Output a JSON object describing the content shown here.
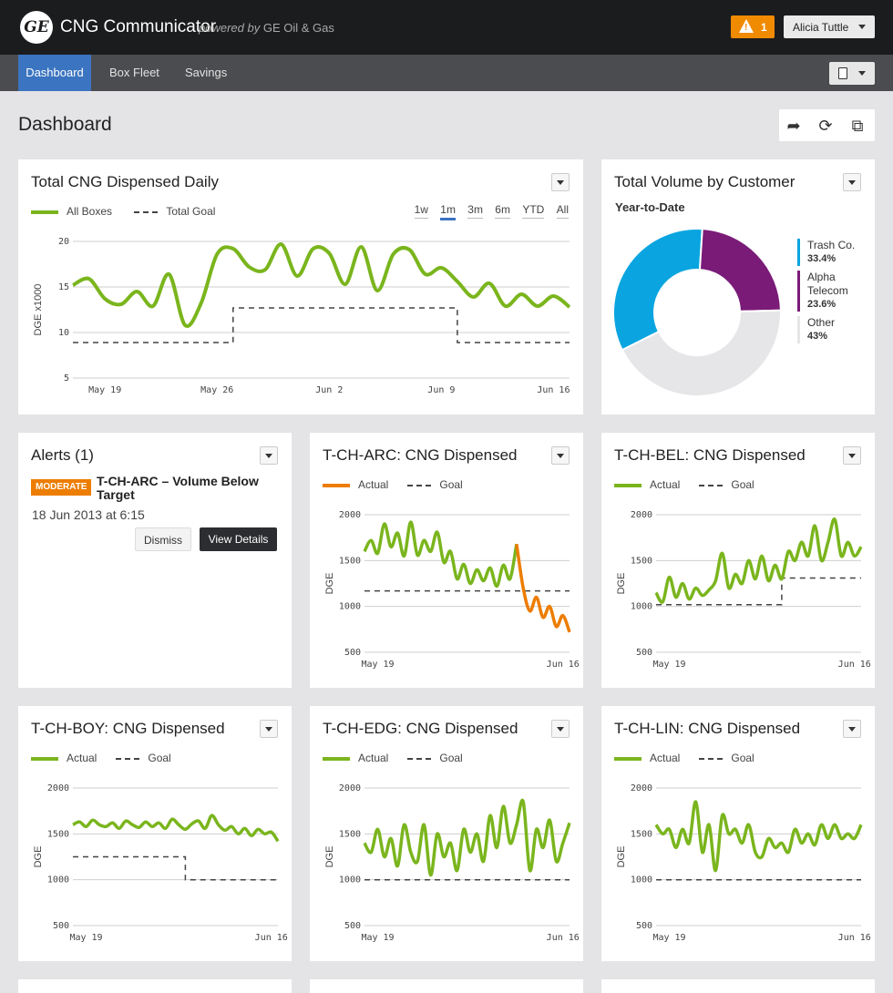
{
  "app": {
    "logo_text": "GE",
    "title": "CNG Communicator",
    "powered_prefix": "powered by",
    "powered_brand": "GE Oil & Gas"
  },
  "header": {
    "alert_count": "1",
    "user_name": "Alicia Tuttle"
  },
  "nav": {
    "items": [
      {
        "label": "Dashboard",
        "active": true
      },
      {
        "label": "Box Fleet"
      },
      {
        "label": "Savings"
      }
    ]
  },
  "page": {
    "title": "Dashboard"
  },
  "colors": {
    "green": "#7ab51d",
    "orange": "#ed7d00",
    "blue": "#0aa5e0",
    "purple": "#7a1b78",
    "gray": "#e6e6e9",
    "nav_active": "#3b74c0"
  },
  "main_chart": {
    "title": "Total CNG Dispensed Daily",
    "legend_actual": "All Boxes",
    "legend_goal": "Total Goal",
    "ranges": [
      "1w",
      "1m",
      "3m",
      "6m",
      "YTD",
      "All"
    ],
    "active_range": "1m"
  },
  "pie": {
    "title": "Total Volume by Customer",
    "subtitle": "Year-to-Date",
    "slices": [
      {
        "name": "Trash Co.",
        "pct": "33.4%",
        "value": 33.4,
        "color": "#0aa5e0"
      },
      {
        "name": "Alpha Telecom",
        "pct": "23.6%",
        "value": 23.6,
        "color": "#7a1b78"
      },
      {
        "name": "Other",
        "pct": "43%",
        "value": 43.0,
        "color": "#e6e6e9"
      }
    ]
  },
  "alerts": {
    "title": "Alerts (1)",
    "severity": "MODERATE",
    "message": "T-CH-ARC – Volume Below Target",
    "date": "18 Jun 2013 at 6:15",
    "dismiss_label": "Dismiss",
    "details_label": "View Details"
  },
  "box_panels": [
    {
      "title": "T-CH-ARC: CNG Dispensed"
    },
    {
      "title": "T-CH-BEL: CNG Dispensed"
    },
    {
      "title": "T-CH-BOY: CNG Dispensed"
    },
    {
      "title": "T-CH-EDG: CNG Dispensed"
    },
    {
      "title": "T-CH-LIN: CNG Dispensed"
    }
  ],
  "legend": {
    "actual": "Actual",
    "goal": "Goal"
  },
  "chart_data": [
    {
      "type": "line",
      "title": "Total CNG Dispensed Daily",
      "xlabel": "",
      "ylabel": "DGE x1000",
      "ylim": [
        5,
        20
      ],
      "yticks": [
        "20",
        "15",
        "10",
        "5"
      ],
      "ytick_values": [
        20,
        15,
        10,
        5
      ],
      "xlim": [
        0,
        31
      ],
      "xticks": [
        "May 19",
        "May 26",
        "Jun 2",
        "Jun 9",
        "Jun 16"
      ],
      "xtick_values": [
        2,
        9,
        16,
        23,
        30
      ],
      "series": [
        {
          "name": "All Boxes",
          "values": [
            15.2,
            15.9,
            13.7,
            13.1,
            14.5,
            12.9,
            16.4,
            10.8,
            13.2,
            18.6,
            19.2,
            17.2,
            16.9,
            19.7,
            16.2,
            19.2,
            18.7,
            15.3,
            19.4,
            14.6,
            18.6,
            19.1,
            16.4,
            17.1,
            15.6,
            13.9,
            15.4,
            12.9,
            14.2,
            12.9,
            14.0,
            12.8
          ]
        },
        {
          "name": "Total Goal",
          "dashed": true,
          "steps": [
            [
              0,
              8.9
            ],
            [
              10,
              8.9
            ],
            [
              10,
              12.7
            ],
            [
              24,
              12.7
            ],
            [
              24,
              8.9
            ],
            [
              31,
              8.9
            ]
          ]
        }
      ]
    },
    {
      "type": "pie",
      "title": "Total Volume by Customer",
      "categories": [
        "Trash Co.",
        "Alpha Telecom",
        "Other"
      ],
      "values": [
        33.4,
        23.6,
        43.0
      ]
    },
    {
      "type": "line",
      "title": "T-CH-ARC: CNG Dispensed",
      "ylabel": "DGE",
      "ylim": [
        500,
        2000
      ],
      "yticks": [
        "2000",
        "1500",
        "1000",
        "500"
      ],
      "ytick_values": [
        2000,
        1500,
        1000,
        500
      ],
      "xlim": [
        0,
        31
      ],
      "xticks": [
        "May 19",
        "Jun 16"
      ],
      "xtick_values": [
        2,
        30
      ],
      "series": [
        {
          "name": "Actual",
          "values": [
            1600,
            1720,
            1580,
            1900,
            1650,
            1800,
            1550,
            1920,
            1560,
            1720,
            1600,
            1810,
            1480,
            1600,
            1300,
            1460,
            1250,
            1400,
            1280,
            1420,
            1220,
            1450,
            1300,
            1680,
            1200,
            950,
            1100,
            880,
            1000,
            780,
            900,
            720
          ]
        },
        {
          "name": "Goal",
          "dashed": true,
          "steps": [
            [
              0,
              1170
            ],
            [
              31,
              1170
            ]
          ]
        }
      ]
    },
    {
      "type": "line",
      "title": "T-CH-BEL: CNG Dispensed",
      "ylabel": "DGE",
      "ylim": [
        500,
        2000
      ],
      "yticks": [
        "2000",
        "1500",
        "1000",
        "500"
      ],
      "ytick_values": [
        2000,
        1500,
        1000,
        500
      ],
      "xlim": [
        0,
        31
      ],
      "xticks": [
        "May 19",
        "Jun 16"
      ],
      "xtick_values": [
        2,
        30
      ],
      "series": [
        {
          "name": "Actual",
          "values": [
            1150,
            1050,
            1320,
            1100,
            1250,
            1080,
            1200,
            1120,
            1180,
            1280,
            1580,
            1200,
            1350,
            1250,
            1500,
            1300,
            1550,
            1280,
            1450,
            1300,
            1600,
            1500,
            1700,
            1550,
            1880,
            1500,
            1700,
            1950,
            1550,
            1700,
            1550,
            1650
          ]
        },
        {
          "name": "Goal",
          "dashed": true,
          "steps": [
            [
              0,
              1020
            ],
            [
              19,
              1020
            ],
            [
              19,
              1310
            ],
            [
              31,
              1310
            ]
          ]
        }
      ]
    },
    {
      "type": "line",
      "title": "T-CH-BOY: CNG Dispensed",
      "ylabel": "DGE",
      "ylim": [
        500,
        2000
      ],
      "yticks": [
        "2000",
        "1500",
        "1000",
        "500"
      ],
      "ytick_values": [
        2000,
        1500,
        1000,
        500
      ],
      "xlim": [
        0,
        31
      ],
      "xticks": [
        "May 19",
        "Jun 16"
      ],
      "xtick_values": [
        2,
        30
      ],
      "series": [
        {
          "name": "Actual",
          "values": [
            1600,
            1630,
            1580,
            1650,
            1600,
            1580,
            1620,
            1560,
            1640,
            1600,
            1570,
            1630,
            1580,
            1620,
            1560,
            1660,
            1600,
            1550,
            1610,
            1640,
            1560,
            1700,
            1600,
            1540,
            1580,
            1500,
            1560,
            1480,
            1550,
            1500,
            1520,
            1420
          ]
        },
        {
          "name": "Goal",
          "dashed": true,
          "steps": [
            [
              0,
              1250
            ],
            [
              17,
              1250
            ],
            [
              17,
              1000
            ],
            [
              31,
              1000
            ]
          ]
        }
      ]
    },
    {
      "type": "line",
      "title": "T-CH-EDG: CNG Dispensed",
      "ylabel": "DGE",
      "ylim": [
        500,
        2000
      ],
      "yticks": [
        "2000",
        "1500",
        "1000",
        "500"
      ],
      "ytick_values": [
        2000,
        1500,
        1000,
        500
      ],
      "xlim": [
        0,
        31
      ],
      "xticks": [
        "May 19",
        "Jun 16"
      ],
      "xtick_values": [
        2,
        30
      ],
      "series": [
        {
          "name": "Actual",
          "values": [
            1400,
            1300,
            1550,
            1250,
            1450,
            1150,
            1600,
            1300,
            1200,
            1600,
            1050,
            1500,
            1250,
            1400,
            1100,
            1550,
            1300,
            1500,
            1200,
            1700,
            1350,
            1800,
            1400,
            1600,
            1850,
            1100,
            1550,
            1350,
            1650,
            1200,
            1400,
            1620
          ]
        },
        {
          "name": "Goal",
          "dashed": true,
          "steps": [
            [
              0,
              1000
            ],
            [
              31,
              1000
            ]
          ]
        }
      ]
    },
    {
      "type": "line",
      "title": "T-CH-LIN: CNG Dispensed",
      "ylabel": "DGE",
      "ylim": [
        500,
        2000
      ],
      "yticks": [
        "2000",
        "1500",
        "1000",
        "500"
      ],
      "ytick_values": [
        2000,
        1500,
        1000,
        500
      ],
      "xlim": [
        0,
        31
      ],
      "xticks": [
        "May 19",
        "Jun 16"
      ],
      "xtick_values": [
        2,
        30
      ],
      "series": [
        {
          "name": "Actual",
          "values": [
            1600,
            1500,
            1550,
            1350,
            1550,
            1400,
            1850,
            1300,
            1600,
            1100,
            1700,
            1500,
            1550,
            1400,
            1600,
            1300,
            1250,
            1450,
            1350,
            1400,
            1300,
            1550,
            1400,
            1500,
            1380,
            1600,
            1450,
            1600,
            1450,
            1500,
            1450,
            1600
          ]
        },
        {
          "name": "Goal",
          "dashed": true,
          "steps": [
            [
              0,
              1000
            ],
            [
              31,
              1000
            ]
          ]
        }
      ]
    }
  ]
}
